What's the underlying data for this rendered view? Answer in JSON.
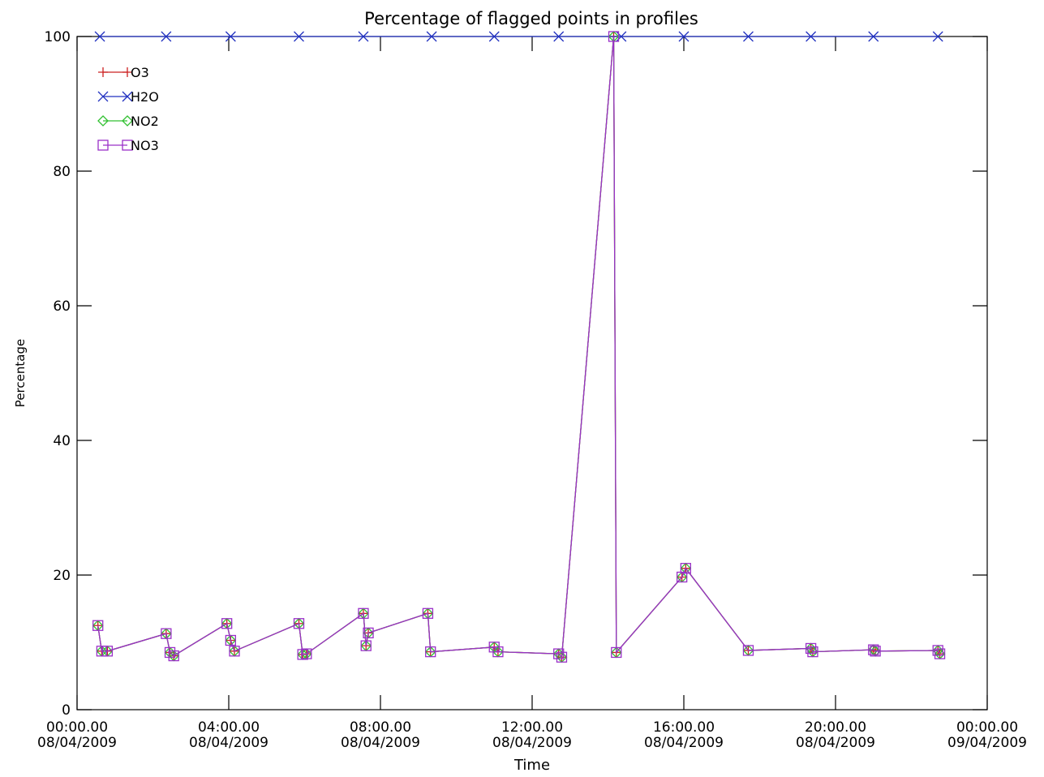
{
  "chart_data": {
    "type": "line",
    "title": "Percentage of flagged points in profiles",
    "xlabel": "Time",
    "ylabel": "Percentage",
    "x_unit": "hours since 00:00 08/04/2009",
    "xlim": [
      0,
      24
    ],
    "ylim": [
      0,
      100
    ],
    "grid": false,
    "legend_position": "top-left",
    "x_ticks": [
      {
        "value": 0,
        "line1": "00:00.00",
        "line2": "08/04/2009"
      },
      {
        "value": 4,
        "line1": "04:00.00",
        "line2": "08/04/2009"
      },
      {
        "value": 8,
        "line1": "08:00.00",
        "line2": "08/04/2009"
      },
      {
        "value": 12,
        "line1": "12:00.00",
        "line2": "08/04/2009"
      },
      {
        "value": 16,
        "line1": "16:00.00",
        "line2": "08/04/2009"
      },
      {
        "value": 20,
        "line1": "20:00.00",
        "line2": "08/04/2009"
      },
      {
        "value": 24,
        "line1": "00:00.00",
        "line2": "09/04/2009"
      }
    ],
    "y_ticks": [
      {
        "value": 0,
        "label": "0"
      },
      {
        "value": 20,
        "label": "20"
      },
      {
        "value": 40,
        "label": "40"
      },
      {
        "value": 60,
        "label": "60"
      },
      {
        "value": 80,
        "label": "80"
      },
      {
        "value": 100,
        "label": "100"
      }
    ],
    "series": [
      {
        "name": "O3",
        "color": "#cc2020",
        "marker": "plus",
        "x": [
          0.55,
          0.65,
          0.8,
          2.35,
          2.45,
          2.55,
          3.95,
          4.05,
          4.15,
          5.85,
          5.95,
          6.05,
          7.55,
          7.62,
          7.68,
          9.25,
          9.32,
          11.0,
          11.1,
          12.7,
          12.78,
          14.15,
          14.22,
          15.95,
          16.05,
          17.7,
          19.35,
          19.4,
          21.0,
          21.05,
          22.7,
          22.75
        ],
        "y": [
          12.5,
          8.7,
          8.7,
          11.3,
          8.5,
          8.0,
          12.8,
          10.3,
          8.7,
          12.8,
          8.2,
          8.3,
          14.3,
          9.5,
          11.4,
          14.3,
          8.6,
          9.3,
          8.6,
          8.3,
          7.8,
          100,
          8.5,
          19.7,
          21.0,
          8.8,
          9.1,
          8.6,
          8.9,
          8.7,
          8.8,
          8.3
        ]
      },
      {
        "name": "H2O",
        "color": "#2030c0",
        "marker": "x",
        "x": [
          0.6,
          2.35,
          4.05,
          5.85,
          7.55,
          9.35,
          11.0,
          12.7,
          14.35,
          16.0,
          17.7,
          19.35,
          21.0,
          22.7
        ],
        "y": [
          100,
          100,
          100,
          100,
          100,
          100,
          100,
          100,
          100,
          100,
          100,
          100,
          100,
          100
        ]
      },
      {
        "name": "NO2",
        "color": "#30c030",
        "marker": "diamond",
        "x": [
          0.55,
          0.65,
          0.8,
          2.35,
          2.45,
          2.55,
          3.95,
          4.05,
          4.15,
          5.85,
          5.95,
          6.05,
          7.55,
          7.62,
          7.68,
          9.25,
          9.32,
          11.0,
          11.1,
          12.7,
          12.78,
          14.15,
          14.22,
          15.95,
          16.05,
          17.7,
          19.35,
          19.4,
          21.0,
          21.05,
          22.7,
          22.75
        ],
        "y": [
          12.5,
          8.7,
          8.7,
          11.3,
          8.5,
          8.0,
          12.8,
          10.3,
          8.7,
          12.8,
          8.2,
          8.3,
          14.3,
          9.5,
          11.4,
          14.3,
          8.6,
          9.3,
          8.6,
          8.3,
          7.8,
          100,
          8.5,
          19.7,
          21.0,
          8.8,
          9.1,
          8.6,
          8.9,
          8.7,
          8.8,
          8.3
        ]
      },
      {
        "name": "NO3",
        "color": "#9a30c8",
        "marker": "square",
        "x": [
          0.55,
          0.65,
          0.8,
          2.35,
          2.45,
          2.55,
          3.95,
          4.05,
          4.15,
          5.85,
          5.95,
          6.05,
          7.55,
          7.62,
          7.68,
          9.25,
          9.32,
          11.0,
          11.1,
          12.7,
          12.78,
          14.15,
          14.22,
          15.95,
          16.05,
          17.7,
          19.35,
          19.4,
          21.0,
          21.05,
          22.7,
          22.75
        ],
        "y": [
          12.5,
          8.7,
          8.7,
          11.3,
          8.5,
          8.0,
          12.8,
          10.3,
          8.7,
          12.8,
          8.2,
          8.3,
          14.3,
          9.5,
          11.4,
          14.3,
          8.6,
          9.3,
          8.6,
          8.3,
          7.8,
          100,
          8.5,
          19.7,
          21.0,
          8.8,
          9.1,
          8.6,
          8.9,
          8.7,
          8.8,
          8.3
        ]
      }
    ]
  }
}
